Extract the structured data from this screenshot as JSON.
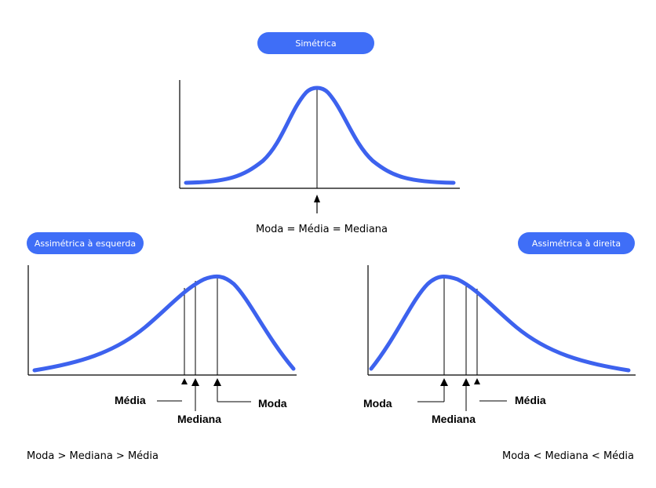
{
  "panels": {
    "symmetric": {
      "badge": "Simétrica",
      "caption": "Moda = Média = Mediana"
    },
    "left_skew": {
      "badge": "Assimétrica à esquerda",
      "labels": {
        "mean": "Média",
        "median": "Mediana",
        "mode": "Moda"
      },
      "caption": "Moda > Mediana > Média"
    },
    "right_skew": {
      "badge": "Assimétrica à direita",
      "labels": {
        "mode": "Moda",
        "median": "Mediana",
        "mean": "Média"
      },
      "caption": "Moda < Mediana < Média"
    }
  },
  "colors": {
    "accent": "#3f6ef7",
    "curve": "#3d62ee",
    "axis": "#000000"
  }
}
